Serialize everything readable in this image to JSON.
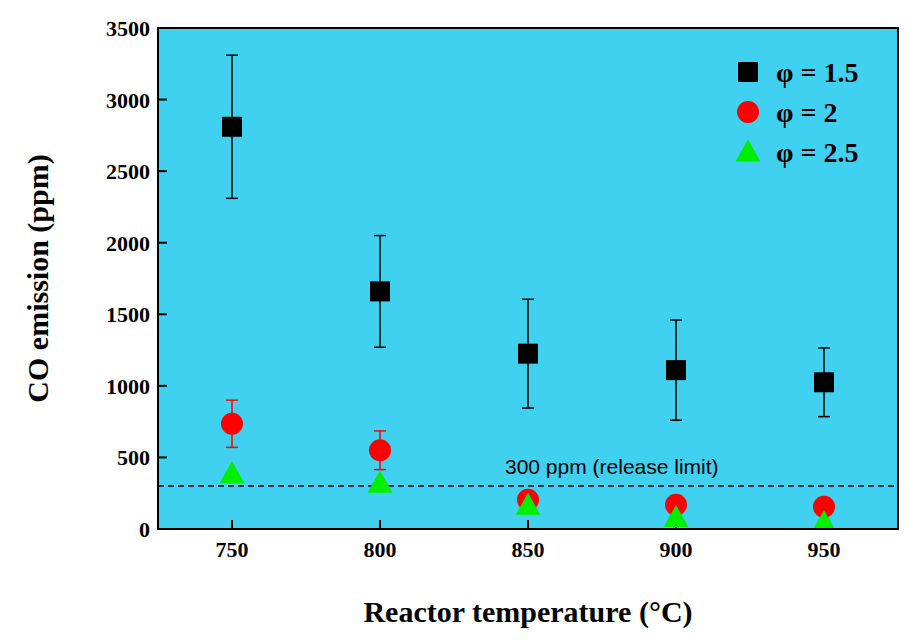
{
  "chart_data": {
    "type": "scatter",
    "x_label": "Reactor temperature (°C)",
    "y_label": "CO emission (ppm)",
    "x": [
      750,
      800,
      850,
      900,
      950
    ],
    "xlim": [
      725,
      975
    ],
    "xticks": [
      750,
      800,
      850,
      900,
      950
    ],
    "ylim": [
      0,
      3500
    ],
    "yticks": [
      0,
      500,
      1000,
      1500,
      2000,
      2500,
      3000,
      3500
    ],
    "legend": "upper right",
    "grid": false,
    "series": [
      {
        "name": "φ = 1.5",
        "color": "#000000",
        "marker": "square",
        "values": [
          2810,
          1660,
          1225,
          1110,
          1025
        ],
        "errors": [
          500,
          390,
          380,
          350,
          240
        ]
      },
      {
        "name": "φ = 2",
        "color": "#ff0000",
        "marker": "circle",
        "values": [
          735,
          550,
          205,
          170,
          155
        ],
        "errors": [
          165,
          135,
          15,
          10,
          10
        ]
      },
      {
        "name": "φ = 2.5",
        "color": "#00ee00",
        "marker": "triangle",
        "values": [
          385,
          320,
          165,
          80,
          45
        ],
        "errors": [
          10,
          10,
          10,
          10,
          10
        ]
      }
    ],
    "annotations": [
      {
        "text": "300 ppm (release limit)",
        "y": 300,
        "line_style": "dashed"
      }
    ]
  }
}
